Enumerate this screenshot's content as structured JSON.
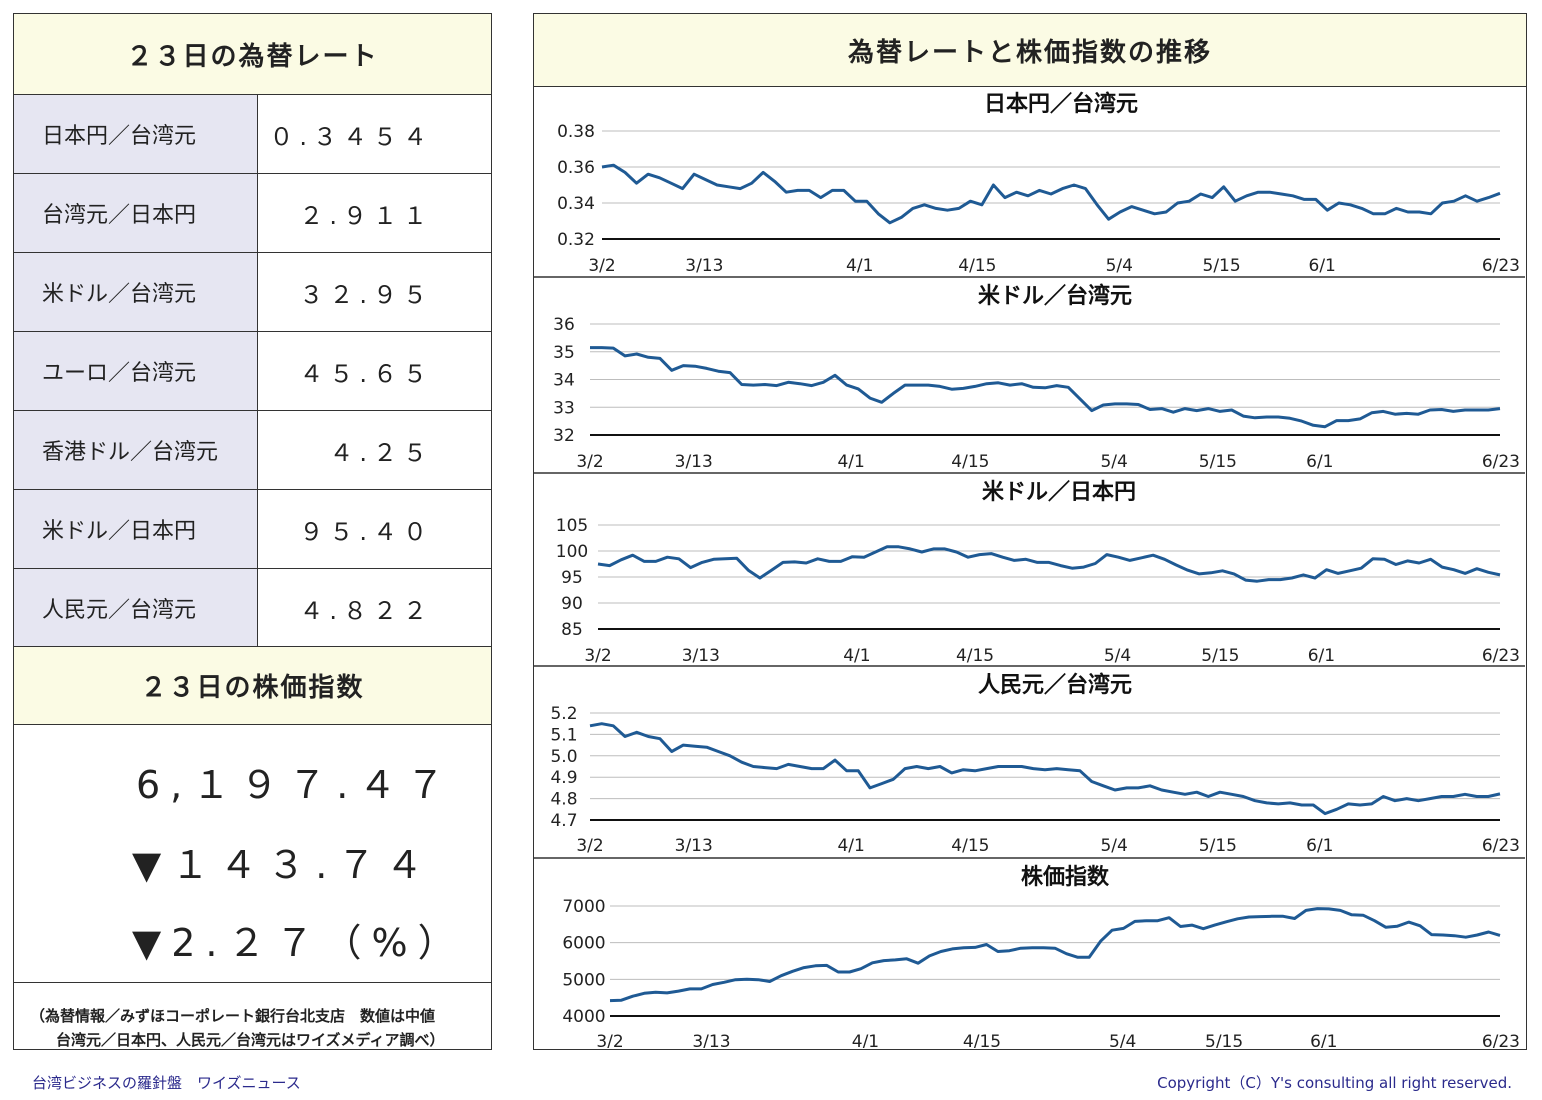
{
  "left": {
    "rates_title": "２３日の為替レート",
    "rates": [
      {
        "label": "日本円／台湾元",
        "value": "０.３４５４"
      },
      {
        "label": "台湾元／日本円",
        "value": "２.９１１"
      },
      {
        "label": "米ドル／台湾元",
        "value": "３２.９５"
      },
      {
        "label": "ユーロ／台湾元",
        "value": "４５.６５"
      },
      {
        "label": "香港ドル／台湾元",
        "value": "４.２５"
      },
      {
        "label": "米ドル／日本円",
        "value": "９５.４０"
      },
      {
        "label": "人民元／台湾元",
        "value": "４.８２２"
      }
    ],
    "index_title": "２３日の株価指数",
    "index_value": "6,１９７.４７",
    "index_change": "▼１４３.７４",
    "index_pct": "▼2.２７（%）",
    "note_line1": "（為替情報／みずほコーポレート銀行台北支店　数値は中値",
    "note_line2": "台湾元／日本円、人民元／台湾元はワイズメディア調べ）"
  },
  "right": {
    "title": "為替レートと株価指数の推移"
  },
  "footer": {
    "left": "台湾ビジネスの羅針盤　ワイズニュース",
    "right": "Copyright（C）Y's consulting all right reserved."
  },
  "colors": {
    "line": "#1f5a94",
    "header_bg": "#fbfbe4",
    "label_bg": "#e6e6f2",
    "footer_text": "#2b2a8c"
  },
  "chart_data": [
    {
      "type": "line",
      "title": "日本円／台湾元",
      "x_ticks": [
        "3/2",
        "3/13",
        "4/1",
        "4/15",
        "5/4",
        "5/15",
        "6/1",
        "6/23"
      ],
      "y_ticks": [
        "0.32",
        "0.34",
        "0.36",
        "0.38"
      ],
      "ylim": [
        0.32,
        0.38
      ],
      "grid": true,
      "series": [
        {
          "values": [
            0.36,
            0.361,
            0.357,
            0.351,
            0.356,
            0.354,
            0.351,
            0.348,
            0.356,
            0.353,
            0.35,
            0.349,
            0.348,
            0.351,
            0.357,
            0.352,
            0.346,
            0.347,
            0.347,
            0.343,
            0.347,
            0.347,
            0.341,
            0.341,
            0.334,
            0.329,
            0.332,
            0.337,
            0.339,
            0.337,
            0.336,
            0.337,
            0.341,
            0.339,
            0.35,
            0.343,
            0.346,
            0.344,
            0.347,
            0.345,
            0.348,
            0.35,
            0.348,
            0.339,
            0.331,
            0.335,
            0.338,
            0.336,
            0.334,
            0.335,
            0.34,
            0.341,
            0.345,
            0.343,
            0.349,
            0.341,
            0.344,
            0.346,
            0.346,
            0.345,
            0.344,
            0.342,
            0.342,
            0.336,
            0.34,
            0.339,
            0.337,
            0.334,
            0.334,
            0.337,
            0.335,
            0.335,
            0.334,
            0.34,
            0.341,
            0.344,
            0.341,
            0.343,
            0.3454
          ]
        }
      ]
    },
    {
      "type": "line",
      "title": "米ドル／台湾元",
      "x_ticks": [
        "3/2",
        "3/13",
        "4/1",
        "4/15",
        "5/4",
        "5/15",
        "6/1",
        "6/23"
      ],
      "y_ticks": [
        "32",
        "33",
        "34",
        "35",
        "36"
      ],
      "ylim": [
        32,
        36
      ],
      "grid": true,
      "series": [
        {
          "values": [
            35.15,
            35.15,
            35.13,
            34.85,
            34.92,
            34.8,
            34.76,
            34.33,
            34.5,
            34.48,
            34.4,
            34.3,
            34.25,
            33.82,
            33.8,
            33.82,
            33.78,
            33.9,
            33.85,
            33.78,
            33.9,
            34.15,
            33.8,
            33.66,
            33.33,
            33.18,
            33.5,
            33.8,
            33.8,
            33.8,
            33.75,
            33.65,
            33.68,
            33.75,
            33.85,
            33.88,
            33.8,
            33.85,
            33.72,
            33.7,
            33.78,
            33.72,
            33.3,
            32.88,
            33.08,
            33.12,
            33.12,
            33.1,
            32.92,
            32.95,
            32.82,
            32.95,
            32.88,
            32.95,
            32.85,
            32.9,
            32.68,
            32.62,
            32.65,
            32.65,
            32.6,
            32.5,
            32.35,
            32.3,
            32.52,
            32.52,
            32.58,
            32.8,
            32.85,
            32.75,
            32.78,
            32.75,
            32.9,
            32.92,
            32.85,
            32.9,
            32.9,
            32.9,
            32.95
          ]
        }
      ]
    },
    {
      "type": "line",
      "title": "米ドル／日本円",
      "x_ticks": [
        "3/2",
        "3/13",
        "4/1",
        "4/15",
        "5/4",
        "5/15",
        "6/1",
        "6/23"
      ],
      "y_ticks": [
        "85",
        "90",
        "95",
        "100",
        "105"
      ],
      "ylim": [
        85,
        105
      ],
      "grid": true,
      "series": [
        {
          "values": [
            97.5,
            97.2,
            98.3,
            99.2,
            98.0,
            98.0,
            98.8,
            98.5,
            96.8,
            97.8,
            98.4,
            98.5,
            98.6,
            96.3,
            94.8,
            96.3,
            97.8,
            97.9,
            97.7,
            98.5,
            98.0,
            98.0,
            98.9,
            98.8,
            99.8,
            100.8,
            100.8,
            100.4,
            99.8,
            100.4,
            100.4,
            99.8,
            98.8,
            99.3,
            99.5,
            98.8,
            98.2,
            98.4,
            97.8,
            97.8,
            97.2,
            96.7,
            96.9,
            97.6,
            99.3,
            98.8,
            98.2,
            98.7,
            99.2,
            98.4,
            97.3,
            96.3,
            95.6,
            95.8,
            96.2,
            95.6,
            94.4,
            94.2,
            94.5,
            94.5,
            94.8,
            95.4,
            94.8,
            96.4,
            95.7,
            96.2,
            96.7,
            98.5,
            98.4,
            97.4,
            98.1,
            97.7,
            98.4,
            96.9,
            96.4,
            95.7,
            96.6,
            95.9,
            95.4
          ]
        }
      ]
    },
    {
      "type": "line",
      "title": "人民元／台湾元",
      "x_ticks": [
        "3/2",
        "3/13",
        "4/1",
        "4/15",
        "5/4",
        "5/15",
        "6/1",
        "6/23"
      ],
      "y_ticks": [
        "4.7",
        "4.8",
        "4.9",
        "5.0",
        "5.1",
        "5.2"
      ],
      "ylim": [
        4.7,
        5.2
      ],
      "grid": true,
      "series": [
        {
          "values": [
            5.14,
            5.15,
            5.14,
            5.09,
            5.11,
            5.09,
            5.08,
            5.02,
            5.05,
            5.045,
            5.04,
            5.02,
            5.0,
            4.97,
            4.95,
            4.945,
            4.94,
            4.96,
            4.95,
            4.94,
            4.94,
            4.98,
            4.93,
            4.93,
            4.85,
            4.87,
            4.89,
            4.94,
            4.95,
            4.94,
            4.95,
            4.92,
            4.935,
            4.93,
            4.94,
            4.95,
            4.95,
            4.95,
            4.94,
            4.935,
            4.94,
            4.935,
            4.93,
            4.88,
            4.86,
            4.84,
            4.85,
            4.85,
            4.86,
            4.84,
            4.83,
            4.82,
            4.83,
            4.81,
            4.83,
            4.82,
            4.81,
            4.79,
            4.78,
            4.775,
            4.78,
            4.77,
            4.77,
            4.73,
            4.75,
            4.775,
            4.77,
            4.775,
            4.81,
            4.79,
            4.8,
            4.79,
            4.8,
            4.81,
            4.81,
            4.82,
            4.81,
            4.81,
            4.822
          ]
        }
      ]
    },
    {
      "type": "line",
      "title": "株価指数",
      "x_ticks": [
        "3/2",
        "3/13",
        "4/1",
        "4/15",
        "5/4",
        "5/15",
        "6/1",
        "6/23"
      ],
      "y_ticks": [
        "4000",
        "5000",
        "6000",
        "7000"
      ],
      "ylim": [
        4000,
        7000
      ],
      "grid": true,
      "series": [
        {
          "values": [
            4420,
            4430,
            4540,
            4620,
            4650,
            4630,
            4680,
            4740,
            4740,
            4860,
            4920,
            4990,
            5000,
            4990,
            4940,
            5100,
            5220,
            5320,
            5370,
            5380,
            5200,
            5200,
            5290,
            5450,
            5510,
            5530,
            5560,
            5440,
            5640,
            5760,
            5830,
            5860,
            5870,
            5950,
            5760,
            5780,
            5850,
            5860,
            5860,
            5850,
            5700,
            5600,
            5600,
            6040,
            6340,
            6390,
            6580,
            6600,
            6600,
            6680,
            6440,
            6480,
            6380,
            6480,
            6570,
            6650,
            6700,
            6710,
            6720,
            6720,
            6660,
            6880,
            6930,
            6920,
            6880,
            6760,
            6750,
            6600,
            6420,
            6450,
            6560,
            6460,
            6220,
            6210,
            6190,
            6150,
            6210,
            6290,
            6197.47
          ]
        }
      ]
    }
  ]
}
